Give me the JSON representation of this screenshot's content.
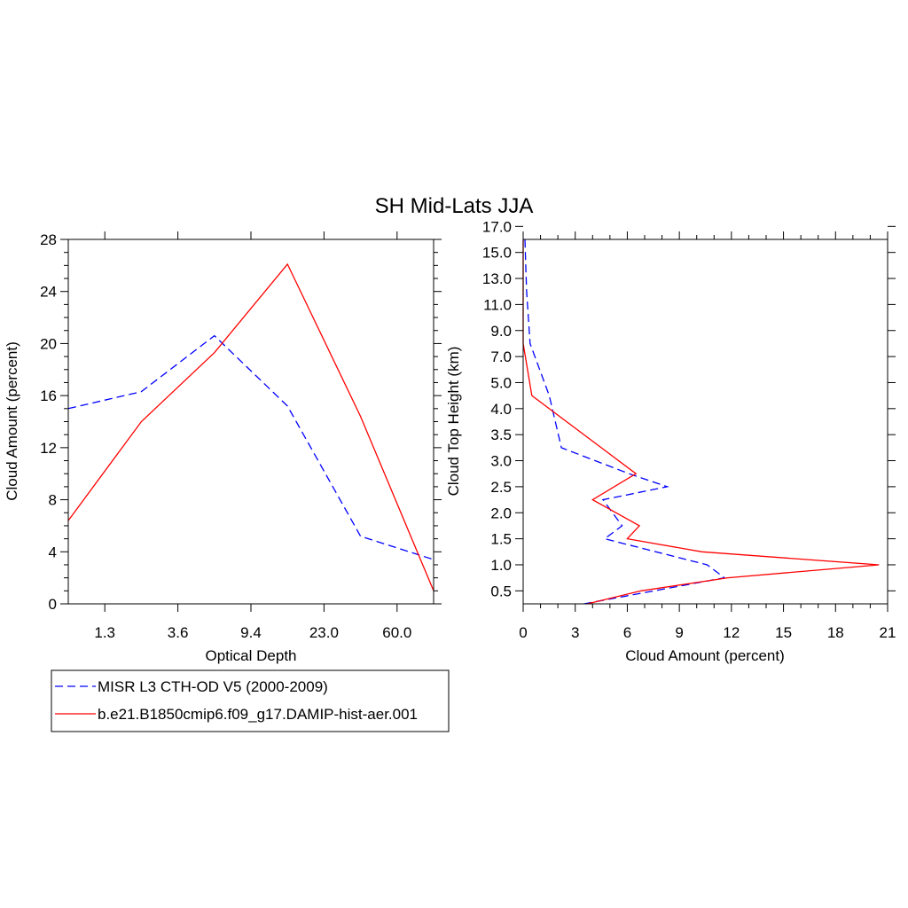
{
  "title": "SH Mid-Lats JJA",
  "colors": {
    "obs": "#0000ff",
    "model": "#ff0000",
    "axis": "#000000"
  },
  "legend": {
    "entries": [
      {
        "label": "MISR L3 CTH-OD V5 (2000-2009)",
        "color": "#0000ff",
        "dash": true
      },
      {
        "label": "b.e21.B1850cmip6.f09_g17.DAMIP-hist-aer.001",
        "color": "#ff0000",
        "dash": false
      }
    ]
  },
  "chart_data": [
    {
      "type": "line",
      "xlabel": "Optical Depth",
      "ylabel": "Cloud Amount (percent)",
      "xtick_labels": [
        "1.3",
        "3.6",
        "9.4",
        "23.0",
        "60.0"
      ],
      "ytick_labels": [
        "0",
        "4",
        "8",
        "12",
        "16",
        "20",
        "24",
        "28"
      ],
      "ylim": [
        0,
        28
      ],
      "y_ticks": [
        0,
        4,
        8,
        12,
        16,
        20,
        24,
        28
      ],
      "x_positions": [
        0.5,
        1.5,
        2.5,
        3.5,
        4.5,
        5.5,
        6.5
      ],
      "x_tick_positions": [
        1,
        2,
        3,
        4,
        5
      ],
      "xlim": [
        0.5,
        5.5
      ],
      "series": [
        {
          "name": "MISR L3 CTH-OD V5 (2000-2009)",
          "x": [
            0.5,
            1.5,
            2.5,
            3.5,
            4.5,
            5.5
          ],
          "values": [
            15.0,
            16.3,
            20.6,
            15.2,
            5.2,
            3.4
          ],
          "color": "#0000ff",
          "dash": true
        },
        {
          "name": "b.e21.B1850cmip6.f09_g17.DAMIP-hist-aer.001",
          "x": [
            0.5,
            1.5,
            2.5,
            3.5,
            4.5,
            5.5
          ],
          "values": [
            6.4,
            14.0,
            19.3,
            26.1,
            14.4,
            1.0
          ],
          "color": "#ff0000",
          "dash": false
        }
      ]
    },
    {
      "type": "line",
      "xlabel": "Cloud Amount (percent)",
      "ylabel": "Cloud Top Height (km)",
      "xtick_labels": [
        "0",
        "3",
        "6",
        "9",
        "12",
        "15",
        "18",
        "21"
      ],
      "x_ticks": [
        0,
        3,
        6,
        9,
        12,
        15,
        18,
        21
      ],
      "xlim": [
        0,
        21
      ],
      "ytick_labels": [
        "0.5",
        "1.0",
        "1.5",
        "2.0",
        "2.5",
        "3.0",
        "3.5",
        "4.0",
        "5.0",
        "7.0",
        "9.0",
        "11.0",
        "13.0",
        "15.0",
        "17.0"
      ],
      "y_tick_positions": [
        0.5,
        1.5,
        2.5,
        3.5,
        4.5,
        5.5,
        6.5,
        7.5,
        8.5,
        9.5,
        10.5,
        11.5,
        12.5,
        13.5,
        14.5
      ],
      "ylim": [
        0,
        14.0
      ],
      "series": [
        {
          "name": "MISR L3 CTH-OD V5 (2000-2009)",
          "y": [
            0,
            1.0,
            1.5,
            2.5,
            3.0,
            4.0,
            4.5,
            5.0,
            6.0,
            8.0,
            10.0,
            12.0,
            13.0,
            14.0
          ],
          "values": [
            3.5,
            11.6,
            10.6,
            4.7,
            5.7,
            4.6,
            8.3,
            6.1,
            2.2,
            1.5,
            0.4,
            0.2,
            0.15,
            0.1
          ],
          "color": "#0000ff",
          "dash": true
        },
        {
          "name": "b.e21.B1850cmip6.f09_g17.DAMIP-hist-aer.001",
          "y": [
            0,
            0.5,
            1.0,
            1.5,
            2.0,
            2.5,
            3.0,
            4.0,
            5.0,
            6.0,
            8.0,
            10.0,
            12.0,
            14.0
          ],
          "values": [
            3.7,
            6.8,
            11.8,
            20.5,
            10.3,
            6.0,
            6.7,
            4.0,
            6.5,
            4.5,
            0.5,
            0.0,
            0.0,
            0.0
          ],
          "color": "#ff0000",
          "dash": false
        }
      ]
    }
  ]
}
